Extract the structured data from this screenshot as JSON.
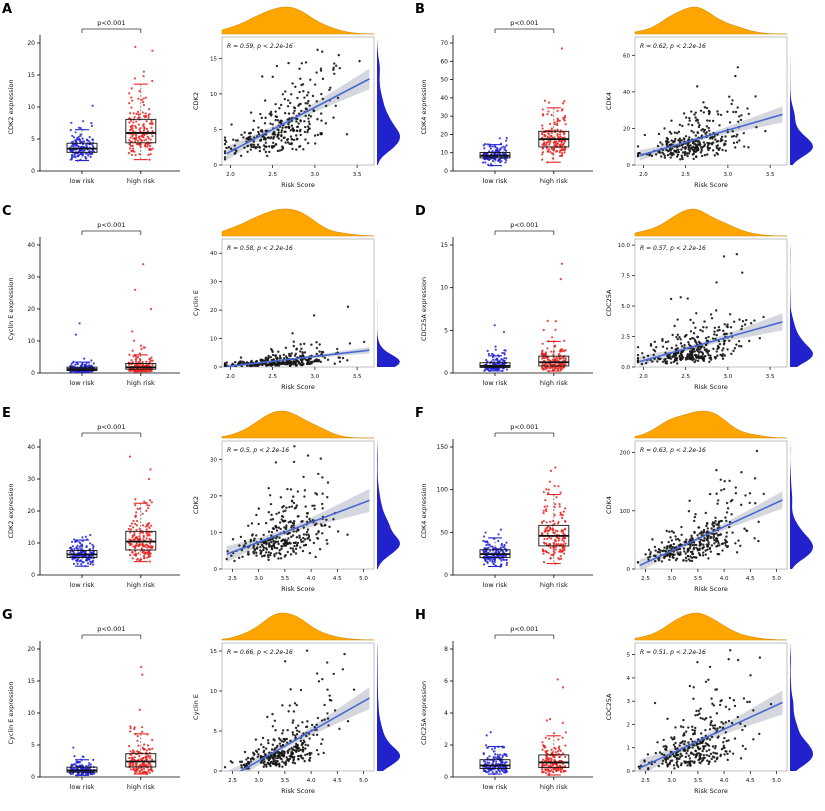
{
  "chart_data": {
    "type": "scatter",
    "description": "Figure with 8 panels (A-H). Each panel: left = jittered box plot of gene expression for low risk vs high risk groups with p-value bracket; right = correlation scatter of expression vs Risk Score with blue regression line, grey confidence band, orange top marginal density and blue right marginal density.",
    "colors": {
      "low": "#2323d8",
      "high": "#e8231f",
      "point": "#141414",
      "line": "#4a68d4",
      "band": "#aab0bd",
      "top_density": "#FFA500",
      "top_density_stroke": "#cc8400",
      "right_density": "#2222cc"
    },
    "panels": [
      {
        "label": "A",
        "boxplot": {
          "ylabel": "CDK2 expression",
          "p_label": "p<0.001",
          "categories": [
            "low risk",
            "high risk"
          ],
          "ylim": [
            0,
            20
          ],
          "yticks": [
            0,
            5,
            10,
            15,
            20
          ],
          "groups": [
            {
              "name": "low risk",
              "n": 150,
              "log_mean": 1.25,
              "log_sd": 0.33,
              "clip_max": 8.2,
              "outliers": [
                10.2
              ]
            },
            {
              "name": "high risk",
              "n": 160,
              "log_mean": 1.72,
              "log_sd": 0.42,
              "clip_max": 16.2,
              "outliers": [
                18.8,
                19.4
              ]
            }
          ]
        },
        "scatter": {
          "annotation": "R = 0.59, p < 2.2e-16",
          "r": 0.59,
          "n": 320,
          "xlabel": "Risk Score",
          "ylabel": "CDK2",
          "xlim": [
            1.9,
            3.7
          ],
          "xticks": [
            2.0,
            2.5,
            3.0,
            3.5
          ],
          "xtick_labels": [
            "2.0",
            "2.5",
            "3.0",
            "3.5"
          ],
          "x_mean": 2.6,
          "x_sd": 0.32,
          "ylim": [
            0,
            18
          ],
          "yticks": [
            0,
            5,
            10,
            15
          ],
          "ytick_labels": [
            "0",
            "5",
            "10",
            "15"
          ],
          "y_log_mean": 1.6,
          "y_log_sd": 0.5
        }
      },
      {
        "label": "B",
        "boxplot": {
          "ylabel": "CDK4 expression",
          "p_label": "p<0.001",
          "categories": [
            "low risk",
            "high risk"
          ],
          "ylim": [
            0,
            70
          ],
          "yticks": [
            0,
            10,
            20,
            30,
            40,
            50,
            60,
            70
          ],
          "groups": [
            {
              "name": "low risk",
              "n": 150,
              "log_mean": 2.1,
              "log_sd": 0.3,
              "clip_max": 19,
              "outliers": []
            },
            {
              "name": "high risk",
              "n": 160,
              "log_mean": 2.8,
              "log_sd": 0.4,
              "clip_max": 42,
              "outliers": [
                67
              ]
            }
          ]
        },
        "scatter": {
          "annotation": "R = 0.62, p < 2.2e-16",
          "r": 0.62,
          "n": 320,
          "xlabel": "Risk Score",
          "ylabel": "CDK4",
          "xlim": [
            1.9,
            3.7
          ],
          "xticks": [
            2.0,
            2.5,
            3.0,
            3.5
          ],
          "xtick_labels": [
            "2.0",
            "2.5",
            "3.0",
            "3.5"
          ],
          "x_mean": 2.6,
          "x_sd": 0.32,
          "ylim": [
            0,
            70
          ],
          "yticks": [
            0,
            20,
            40,
            60
          ],
          "ytick_labels": [
            "0",
            "20",
            "40",
            "60"
          ],
          "y_log_mean": 2.5,
          "y_log_sd": 0.55
        }
      },
      {
        "label": "C",
        "boxplot": {
          "ylabel": "Cyclin E expression",
          "p_label": "p<0.001",
          "categories": [
            "low risk",
            "high risk"
          ],
          "ylim": [
            0,
            40
          ],
          "yticks": [
            0,
            10,
            20,
            30,
            40
          ],
          "groups": [
            {
              "name": "low risk",
              "n": 150,
              "log_mean": 0.15,
              "log_sd": 0.55,
              "clip_max": 8,
              "outliers": [
                12,
                15.5
              ]
            },
            {
              "name": "high risk",
              "n": 160,
              "log_mean": 0.6,
              "log_sd": 0.7,
              "clip_max": 13,
              "outliers": [
                20,
                26,
                34
              ]
            }
          ]
        },
        "scatter": {
          "annotation": "R = 0.58, p < 2.2e-16",
          "r": 0.58,
          "n": 320,
          "xlabel": "Risk Score",
          "ylabel": "Cyclin E",
          "xlim": [
            1.9,
            3.7
          ],
          "xticks": [
            2.0,
            2.5,
            3.0,
            3.5
          ],
          "xtick_labels": [
            "2.0",
            "2.5",
            "3.0",
            "3.5"
          ],
          "x_mean": 2.6,
          "x_sd": 0.32,
          "ylim": [
            0,
            45
          ],
          "yticks": [
            0,
            10,
            20,
            30,
            40
          ],
          "ytick_labels": [
            "0",
            "10",
            "20",
            "30",
            "40"
          ],
          "y_log_mean": 0.5,
          "y_log_sd": 0.8
        }
      },
      {
        "label": "D",
        "boxplot": {
          "ylabel": "CDC25A expression",
          "p_label": "p<0.001",
          "categories": [
            "low risk",
            "high risk"
          ],
          "ylim": [
            0,
            15
          ],
          "yticks": [
            0,
            5,
            10,
            15
          ],
          "groups": [
            {
              "name": "low risk",
              "n": 150,
              "log_mean": -0.1,
              "log_sd": 0.5,
              "clip_max": 3.4,
              "outliers": [
                4.8,
                5.6
              ]
            },
            {
              "name": "high risk",
              "n": 160,
              "log_mean": 0.3,
              "log_sd": 0.65,
              "clip_max": 8.5,
              "outliers": [
                11,
                12.8
              ]
            }
          ]
        },
        "scatter": {
          "annotation": "R = 0.57, p < 2.2e-16",
          "r": 0.57,
          "n": 320,
          "xlabel": "Risk Score",
          "ylabel": "CDC25A",
          "xlim": [
            1.9,
            3.7
          ],
          "xticks": [
            2.0,
            2.5,
            3.0,
            3.5
          ],
          "xtick_labels": [
            "2.0",
            "2.5",
            "3.0",
            "3.5"
          ],
          "x_mean": 2.6,
          "x_sd": 0.32,
          "ylim": [
            0,
            10.5
          ],
          "yticks": [
            0,
            2.5,
            5,
            7.5,
            10
          ],
          "ytick_labels": [
            "0.0",
            "2.5",
            "5.0",
            "7.5",
            "10.0"
          ],
          "y_log_mean": 0.3,
          "y_log_sd": 0.7
        }
      },
      {
        "label": "E",
        "boxplot": {
          "ylabel": "CDK2 expression",
          "p_label": "p<0.001",
          "categories": [
            "low risk",
            "high risk"
          ],
          "ylim": [
            0,
            40
          ],
          "yticks": [
            0,
            10,
            20,
            30,
            40
          ],
          "groups": [
            {
              "name": "low risk",
              "n": 150,
              "log_mean": 1.87,
              "log_sd": 0.28,
              "clip_max": 12.5,
              "outliers": []
            },
            {
              "name": "high risk",
              "n": 160,
              "log_mean": 2.3,
              "log_sd": 0.4,
              "clip_max": 24,
              "outliers": [
                30,
                33,
                37
              ]
            }
          ]
        },
        "scatter": {
          "annotation": "R = 0.5, p < 2.2e-16",
          "r": 0.5,
          "n": 320,
          "xlabel": "Risk Score",
          "ylabel": "CDK2",
          "xlim": [
            2.3,
            5.2
          ],
          "xticks": [
            2.5,
            3,
            3.5,
            4,
            4.5,
            5
          ],
          "xtick_labels": [
            "2.5",
            "3.0",
            "3.5",
            "4.0",
            "4.5",
            "5.0"
          ],
          "x_mean": 3.5,
          "x_sd": 0.45,
          "ylim": [
            0,
            35
          ],
          "yticks": [
            0,
            10,
            20,
            30
          ],
          "ytick_labels": [
            "0",
            "10",
            "20",
            "30"
          ],
          "y_log_mean": 2.2,
          "y_log_sd": 0.5
        }
      },
      {
        "label": "F",
        "boxplot": {
          "ylabel": "CDK4 expression",
          "p_label": "p<0.001",
          "categories": [
            "low risk",
            "high risk"
          ],
          "ylim": [
            0,
            150
          ],
          "yticks": [
            0,
            50,
            100,
            150
          ],
          "groups": [
            {
              "name": "low risk",
              "n": 150,
              "log_mean": 3.2,
              "log_sd": 0.3,
              "clip_max": 65,
              "outliers": []
            },
            {
              "name": "high risk",
              "n": 160,
              "log_mean": 3.8,
              "log_sd": 0.42,
              "clip_max": 110,
              "outliers": [
                122,
                126
              ]
            }
          ]
        },
        "scatter": {
          "annotation": "R = 0.63, p < 2.2e-16",
          "r": 0.63,
          "n": 320,
          "xlabel": "Risk Score",
          "ylabel": "CDK4",
          "xlim": [
            2.3,
            5.2
          ],
          "xticks": [
            2.5,
            3,
            3.5,
            4,
            4.5,
            5
          ],
          "xtick_labels": [
            "2.5",
            "3.0",
            "3.5",
            "4.0",
            "4.5",
            "5.0"
          ],
          "x_mean": 3.5,
          "x_sd": 0.45,
          "ylim": [
            0,
            220
          ],
          "yticks": [
            0,
            100,
            200
          ],
          "ytick_labels": [
            "0",
            "100",
            "200"
          ],
          "y_log_mean": 3.8,
          "y_log_sd": 0.55
        }
      },
      {
        "label": "G",
        "boxplot": {
          "ylabel": "Cyclin E expression",
          "p_label": "p<0.001",
          "categories": [
            "low risk",
            "high risk"
          ],
          "ylim": [
            0,
            20
          ],
          "yticks": [
            0,
            5,
            10,
            15,
            20
          ],
          "groups": [
            {
              "name": "low risk",
              "n": 150,
              "log_mean": 0.0,
              "log_sd": 0.45,
              "clip_max": 3.6,
              "outliers": [
                4.6
              ]
            },
            {
              "name": "high risk",
              "n": 160,
              "log_mean": 0.85,
              "log_sd": 0.6,
              "clip_max": 8,
              "outliers": [
                10.5,
                16,
                17.2
              ]
            }
          ]
        },
        "scatter": {
          "annotation": "R = 0.66, p < 2.2e-16",
          "r": 0.66,
          "n": 320,
          "xlabel": "Risk Score",
          "ylabel": "Cyclin E",
          "xlim": [
            2.3,
            5.2
          ],
          "xticks": [
            2.5,
            3,
            3.5,
            4,
            4.5,
            5
          ],
          "xtick_labels": [
            "2.5",
            "3.0",
            "3.5",
            "4.0",
            "4.5",
            "5.0"
          ],
          "x_mean": 3.5,
          "x_sd": 0.45,
          "ylim": [
            0,
            16
          ],
          "yticks": [
            0,
            5,
            10,
            15
          ],
          "ytick_labels": [
            "0",
            "5",
            "10",
            "15"
          ],
          "y_log_mean": 0.8,
          "y_log_sd": 0.75
        }
      },
      {
        "label": "H",
        "boxplot": {
          "ylabel": "CDC25A expression",
          "p_label": "p<0.001",
          "categories": [
            "low risk",
            "high risk"
          ],
          "ylim": [
            0,
            8
          ],
          "yticks": [
            0,
            2,
            4,
            6,
            8
          ],
          "groups": [
            {
              "name": "low risk",
              "n": 150,
              "log_mean": -0.35,
              "log_sd": 0.5,
              "clip_max": 2.1,
              "outliers": [
                2.6,
                2.8
              ]
            },
            {
              "name": "high risk",
              "n": 160,
              "log_mean": -0.05,
              "log_sd": 0.6,
              "clip_max": 4.4,
              "outliers": [
                5.6,
                6.1
              ]
            }
          ]
        },
        "scatter": {
          "annotation": "R = 0.51, p < 2.2e-16",
          "r": 0.51,
          "n": 320,
          "xlabel": "Risk Score",
          "ylabel": "CDC25A",
          "xlim": [
            2.3,
            5.2
          ],
          "xticks": [
            2.5,
            3,
            3.5,
            4,
            4.5,
            5
          ],
          "xtick_labels": [
            "2.5",
            "3.0",
            "3.5",
            "4.0",
            "4.5",
            "5.0"
          ],
          "x_mean": 3.5,
          "x_sd": 0.45,
          "ylim": [
            0,
            5.5
          ],
          "yticks": [
            0,
            1,
            2,
            3,
            4,
            5
          ],
          "ytick_labels": [
            "0",
            "1",
            "2",
            "3",
            "4",
            "5"
          ],
          "y_log_mean": 0.0,
          "y_log_sd": 0.7
        }
      }
    ]
  }
}
